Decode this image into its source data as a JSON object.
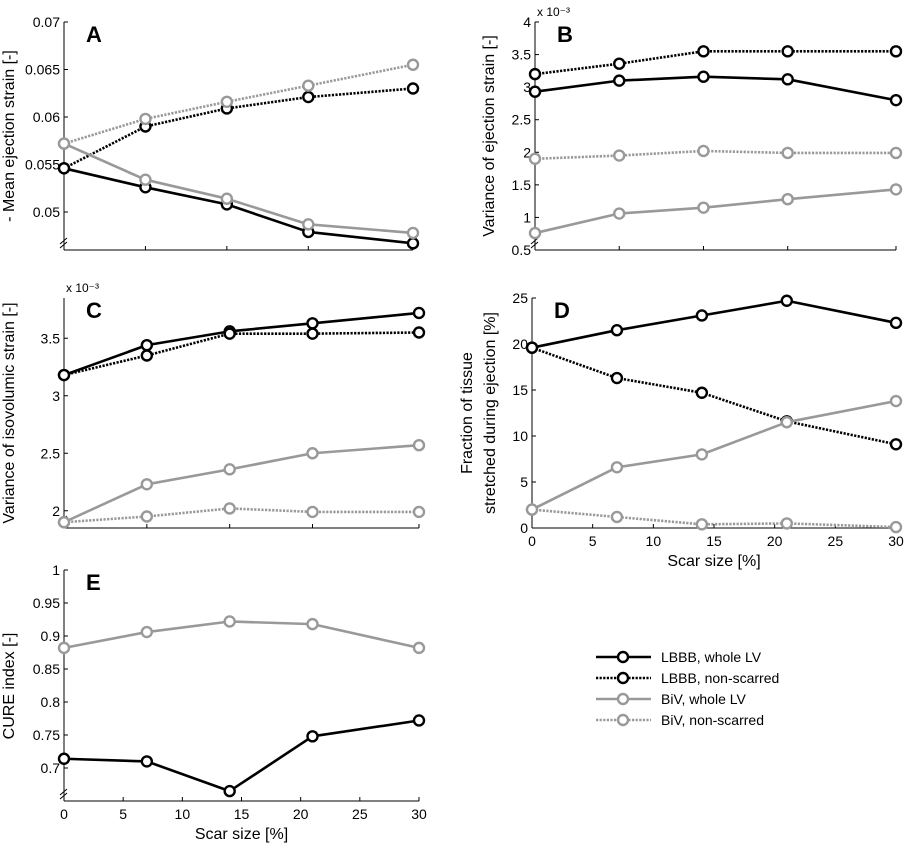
{
  "legend": {
    "entries": [
      {
        "label": "LBBB, whole LV",
        "color": "#000000",
        "style": "solid"
      },
      {
        "label": "LBBB, non-scarred",
        "color": "#000000",
        "style": "dotted"
      },
      {
        "label": "BiV, whole LV",
        "color": "#999999",
        "style": "solid"
      },
      {
        "label": "BiV, non-scarred",
        "color": "#999999",
        "style": "dotted"
      }
    ]
  },
  "chart_data": [
    {
      "id": "A",
      "type": "line",
      "panel_label": "A",
      "ylabel": "- Mean ejection strain [-]",
      "xlabel": "",
      "x": [
        0,
        7,
        14,
        21,
        30
      ],
      "xlim": [
        0,
        30
      ],
      "ylim": [
        0.046,
        0.07
      ],
      "yticks": [
        0.05,
        0.055,
        0.06,
        0.065,
        0.07
      ],
      "ytick_labels": [
        "0.05",
        "0.055",
        "0.06",
        "0.065",
        "0.07"
      ],
      "xticks": [],
      "xtick_labels": [],
      "exponent": "",
      "axis_break": true,
      "series": [
        {
          "name": "LBBB, whole LV",
          "values": [
            0.0546,
            0.0526,
            0.0508,
            0.0479,
            0.0467
          ]
        },
        {
          "name": "LBBB, non-scarred",
          "values": [
            0.0546,
            0.059,
            0.0609,
            0.0621,
            0.063
          ]
        },
        {
          "name": "BiV, whole LV",
          "values": [
            0.0572,
            0.0534,
            0.0514,
            0.0487,
            0.0478
          ]
        },
        {
          "name": "BiV, non-scarred",
          "values": [
            0.0572,
            0.0598,
            0.0616,
            0.0633,
            0.0655
          ]
        }
      ]
    },
    {
      "id": "B",
      "type": "line",
      "panel_label": "B",
      "ylabel": "Variance of ejection strain [-]",
      "xlabel": "",
      "x": [
        0,
        7,
        14,
        21,
        30
      ],
      "xlim": [
        0,
        30
      ],
      "ylim": [
        0.5,
        4.0
      ],
      "yticks": [
        0.5,
        1,
        1.5,
        2,
        2.5,
        3,
        3.5,
        4
      ],
      "ytick_labels": [
        "0.5",
        "1",
        "1.5",
        "2",
        "2.5",
        "3",
        "3.5",
        "4"
      ],
      "xticks": [],
      "xtick_labels": [],
      "exponent": "x 10⁻³",
      "axis_break": true,
      "series": [
        {
          "name": "LBBB, whole LV",
          "values": [
            2.93,
            3.1,
            3.16,
            3.12,
            2.8
          ]
        },
        {
          "name": "LBBB, non-scarred",
          "values": [
            3.2,
            3.36,
            3.55,
            3.55,
            3.55
          ]
        },
        {
          "name": "BiV, whole LV",
          "values": [
            0.76,
            1.06,
            1.15,
            1.28,
            1.43
          ]
        },
        {
          "name": "BiV, non-scarred",
          "values": [
            1.9,
            1.95,
            2.02,
            1.99,
            1.99
          ]
        }
      ]
    },
    {
      "id": "C",
      "type": "line",
      "panel_label": "C",
      "ylabel": "Variance of isovolumic strain [-]",
      "xlabel": "",
      "x": [
        0,
        7,
        14,
        21,
        30
      ],
      "xlim": [
        0,
        30
      ],
      "ylim": [
        1.85,
        3.85
      ],
      "yticks": [
        2,
        2.5,
        3,
        3.5
      ],
      "ytick_labels": [
        "2",
        "2.5",
        "3",
        "3.5"
      ],
      "xticks": [],
      "xtick_labels": [],
      "exponent": "x 10⁻³",
      "axis_break": true,
      "series": [
        {
          "name": "LBBB, whole LV",
          "values": [
            3.18,
            3.44,
            3.56,
            3.63,
            3.72
          ]
        },
        {
          "name": "LBBB, non-scarred",
          "values": [
            3.18,
            3.35,
            3.54,
            3.54,
            3.55
          ]
        },
        {
          "name": "BiV, whole LV",
          "values": [
            1.9,
            2.23,
            2.36,
            2.5,
            2.57
          ]
        },
        {
          "name": "BiV, non-scarred",
          "values": [
            1.9,
            1.95,
            2.02,
            1.99,
            1.99
          ]
        }
      ]
    },
    {
      "id": "D",
      "type": "line",
      "panel_label": "D",
      "ylabel_lines": [
        "Fraction of tissue",
        "stretched during ejection [%]"
      ],
      "xlabel": "Scar size [%]",
      "x": [
        0,
        7,
        14,
        21,
        30
      ],
      "xlim": [
        0,
        30
      ],
      "ylim": [
        0,
        25
      ],
      "yticks": [
        0,
        5,
        10,
        15,
        20,
        25
      ],
      "ytick_labels": [
        "0",
        "5",
        "10",
        "15",
        "20",
        "25"
      ],
      "xticks": [
        0,
        5,
        10,
        15,
        20,
        25,
        30
      ],
      "xtick_labels": [
        "0",
        "5",
        "10",
        "15",
        "20",
        "25",
        "30"
      ],
      "exponent": "",
      "axis_break": false,
      "series": [
        {
          "name": "LBBB, whole LV",
          "values": [
            19.6,
            21.5,
            23.1,
            24.7,
            22.3
          ]
        },
        {
          "name": "LBBB, non-scarred",
          "values": [
            19.6,
            16.3,
            14.7,
            11.6,
            9.1
          ]
        },
        {
          "name": "BiV, whole LV",
          "values": [
            2.0,
            6.6,
            8.0,
            11.5,
            13.8
          ]
        },
        {
          "name": "BiV, non-scarred",
          "values": [
            2.0,
            1.2,
            0.4,
            0.5,
            0.1
          ]
        }
      ]
    },
    {
      "id": "E",
      "type": "line",
      "panel_label": "E",
      "ylabel": "CURE index [-]",
      "xlabel": "Scar size [%]",
      "x": [
        0,
        7,
        14,
        21,
        30
      ],
      "xlim": [
        0,
        30
      ],
      "ylim": [
        0.65,
        1.0
      ],
      "yticks": [
        0.7,
        0.75,
        0.8,
        0.85,
        0.9,
        0.95,
        1
      ],
      "ytick_labels": [
        "0.7",
        "0.75",
        "0.8",
        "0.85",
        "0.9",
        "0.95",
        "1"
      ],
      "xticks": [
        0,
        5,
        10,
        15,
        20,
        25,
        30
      ],
      "xtick_labels": [
        "0",
        "5",
        "10",
        "15",
        "20",
        "25",
        "30"
      ],
      "exponent": "",
      "axis_break": true,
      "series": [
        {
          "name": "LBBB, whole LV",
          "values": [
            0.714,
            0.71,
            0.665,
            0.748,
            0.772
          ]
        },
        {
          "name": "BiV, whole LV",
          "values": [
            0.882,
            0.906,
            0.922,
            0.918,
            0.882
          ]
        }
      ]
    }
  ]
}
